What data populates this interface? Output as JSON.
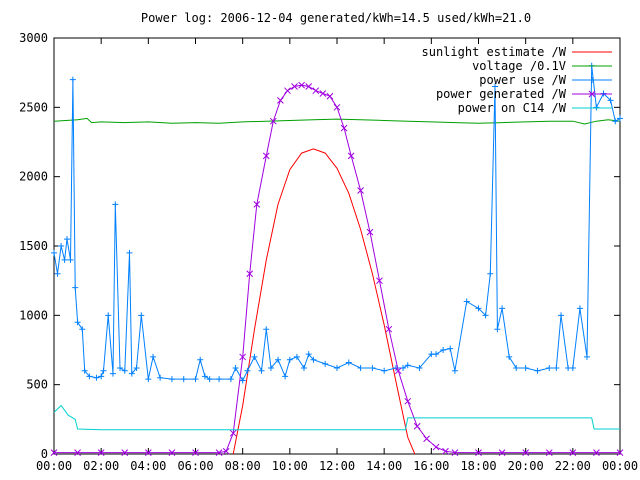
{
  "chart_data": {
    "type": "line",
    "title": "Power log: 2006-12-04 generated/kWh=14.5 used/kWh=21.0",
    "xlabel": "",
    "ylabel": "",
    "xlim": [
      0,
      24
    ],
    "ylim": [
      0,
      3000
    ],
    "grid": false,
    "legend_position": "top-right",
    "x_tick_labels": [
      "00:00",
      "02:00",
      "04:00",
      "06:00",
      "08:00",
      "10:00",
      "12:00",
      "14:00",
      "16:00",
      "18:00",
      "20:00",
      "22:00",
      "00:00"
    ],
    "x_tick_values": [
      0,
      2,
      4,
      6,
      8,
      10,
      12,
      14,
      16,
      18,
      20,
      22,
      24
    ],
    "y_tick_labels": [
      "0",
      "500",
      "1000",
      "1500",
      "2000",
      "2500",
      "3000"
    ],
    "y_tick_values": [
      0,
      500,
      1000,
      1500,
      2000,
      2500,
      3000
    ],
    "series": [
      {
        "name": "sunlight estimate /W",
        "color": "#ff0000",
        "marker": "none",
        "x": [
          7.6,
          8.0,
          8.5,
          9.0,
          9.5,
          10.0,
          10.5,
          11.0,
          11.5,
          12.0,
          12.5,
          13.0,
          13.5,
          14.0,
          14.5,
          15.0,
          15.3
        ],
        "y": [
          0,
          350,
          900,
          1400,
          1800,
          2050,
          2170,
          2200,
          2170,
          2060,
          1880,
          1620,
          1300,
          930,
          520,
          120,
          0
        ]
      },
      {
        "name": "voltage /0.1V",
        "color": "#00a000",
        "marker": "none",
        "x": [
          0,
          0.5,
          1.0,
          1.4,
          1.6,
          2,
          3,
          4,
          5,
          6,
          7,
          8,
          9,
          10,
          11,
          12,
          13,
          14,
          15,
          16,
          17,
          18,
          19,
          20,
          21,
          22,
          22.5,
          23,
          23.5,
          24
        ],
        "y": [
          2400,
          2405,
          2410,
          2420,
          2390,
          2395,
          2390,
          2395,
          2385,
          2390,
          2385,
          2395,
          2400,
          2405,
          2410,
          2415,
          2410,
          2405,
          2400,
          2395,
          2390,
          2385,
          2390,
          2395,
          2400,
          2400,
          2380,
          2400,
          2410,
          2400
        ]
      },
      {
        "name": "power use /W",
        "color": "#0080ff",
        "marker": "+",
        "x": [
          0,
          0.15,
          0.3,
          0.45,
          0.55,
          0.7,
          0.8,
          0.9,
          1.0,
          1.2,
          1.3,
          1.5,
          1.8,
          2.0,
          2.1,
          2.3,
          2.5,
          2.6,
          2.8,
          3.0,
          3.2,
          3.3,
          3.5,
          3.7,
          4.0,
          4.2,
          4.5,
          5.0,
          5.5,
          6.0,
          6.2,
          6.4,
          6.6,
          7.0,
          7.5,
          7.7,
          8.0,
          8.2,
          8.5,
          8.8,
          9.0,
          9.2,
          9.5,
          9.8,
          10.0,
          10.3,
          10.6,
          10.8,
          11.0,
          11.5,
          12.0,
          12.5,
          13.0,
          13.5,
          14.0,
          14.5,
          14.8,
          15.0,
          15.5,
          16.0,
          16.2,
          16.5,
          16.8,
          17.0,
          17.5,
          18.0,
          18.3,
          18.5,
          18.7,
          18.8,
          19.0,
          19.3,
          19.6,
          20.0,
          20.5,
          21.0,
          21.3,
          21.5,
          21.8,
          22.0,
          22.3,
          22.6,
          22.8,
          23.0,
          23.3,
          23.6,
          23.8,
          24.0
        ],
        "y": [
          1450,
          1300,
          1500,
          1400,
          1550,
          1400,
          2700,
          1200,
          950,
          900,
          600,
          560,
          550,
          560,
          600,
          1000,
          580,
          1800,
          620,
          600,
          1450,
          580,
          620,
          1000,
          540,
          700,
          550,
          540,
          540,
          540,
          680,
          560,
          540,
          540,
          540,
          620,
          530,
          600,
          700,
          600,
          900,
          620,
          680,
          560,
          680,
          700,
          620,
          720,
          680,
          650,
          620,
          660,
          620,
          620,
          600,
          620,
          620,
          640,
          620,
          720,
          720,
          750,
          760,
          600,
          1100,
          1050,
          1000,
          1300,
          2650,
          900,
          1050,
          700,
          620,
          620,
          600,
          620,
          620,
          1000,
          620,
          620,
          1050,
          700,
          2800,
          2500,
          2600,
          2550,
          2400,
          2420
        ]
      },
      {
        "name": "power generated /W",
        "color": "#a000e0",
        "marker": "x",
        "x": [
          0,
          1,
          2,
          3,
          4,
          5,
          6,
          7,
          7.3,
          7.6,
          8.0,
          8.3,
          8.6,
          9.0,
          9.3,
          9.6,
          9.9,
          10.2,
          10.5,
          10.8,
          11.1,
          11.4,
          11.7,
          12.0,
          12.3,
          12.6,
          13.0,
          13.4,
          13.8,
          14.2,
          14.6,
          15.0,
          15.4,
          15.8,
          16.2,
          16.6,
          17.0,
          18,
          19,
          20,
          21,
          22,
          23,
          24
        ],
        "y": [
          10,
          10,
          10,
          10,
          10,
          10,
          10,
          10,
          20,
          150,
          700,
          1300,
          1800,
          2150,
          2400,
          2550,
          2620,
          2650,
          2660,
          2650,
          2620,
          2600,
          2580,
          2500,
          2350,
          2150,
          1900,
          1600,
          1250,
          900,
          600,
          380,
          200,
          110,
          50,
          20,
          10,
          10,
          10,
          10,
          10,
          10,
          10,
          10
        ]
      },
      {
        "name": "power on C14 /W",
        "color": "#00d0d0",
        "marker": "none",
        "x": [
          0,
          0.3,
          0.6,
          0.9,
          1.0,
          2,
          4,
          6,
          8,
          10,
          12,
          14,
          14.9,
          15.0,
          16,
          18,
          20,
          22,
          22.8,
          22.9,
          23.5,
          24
        ],
        "y": [
          300,
          350,
          280,
          250,
          180,
          175,
          175,
          175,
          175,
          175,
          175,
          175,
          175,
          260,
          260,
          260,
          260,
          260,
          260,
          180,
          180,
          180
        ]
      }
    ]
  }
}
